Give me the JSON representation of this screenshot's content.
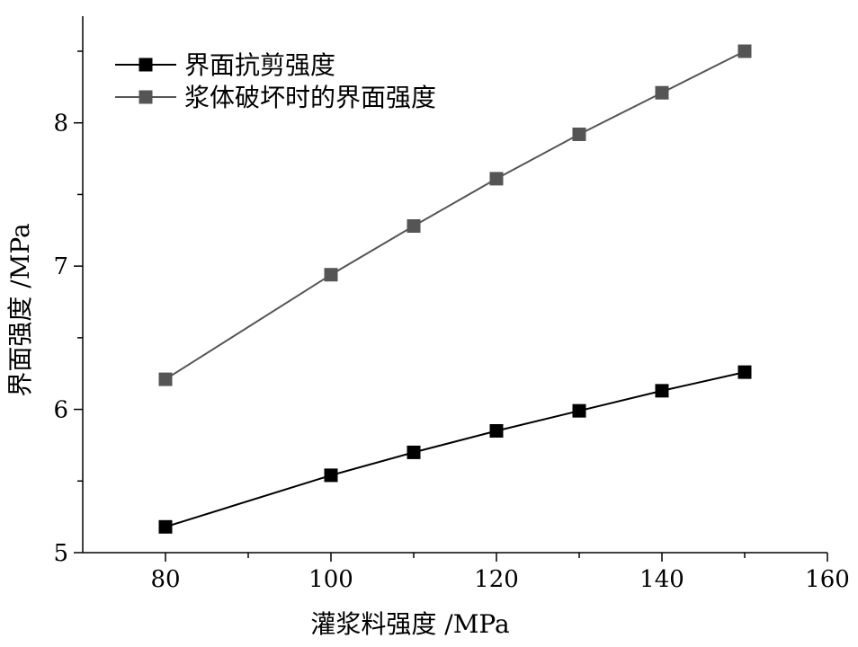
{
  "chart_data": {
    "type": "line",
    "title": "",
    "xlabel": "灌浆料强度 /MPa",
    "ylabel": "界面强度 /MPa",
    "xlim": [
      70,
      160
    ],
    "ylim": [
      5,
      8.5
    ],
    "x_ticks": [
      80,
      100,
      120,
      140,
      160
    ],
    "y_ticks": [
      5,
      6,
      7,
      8
    ],
    "grid": false,
    "legend_position": "top-left",
    "x": [
      80,
      100,
      110,
      120,
      130,
      140,
      150
    ],
    "series": [
      {
        "name": "界面抗剪强度",
        "color": "#000000",
        "marker": "square",
        "values": [
          5.18,
          5.54,
          5.7,
          5.85,
          5.99,
          6.13,
          6.26
        ]
      },
      {
        "name": "浆体破坏时的界面强度",
        "color": "#555555",
        "marker": "square",
        "values": [
          6.21,
          6.94,
          7.28,
          7.61,
          7.92,
          8.21,
          8.5
        ]
      }
    ]
  }
}
